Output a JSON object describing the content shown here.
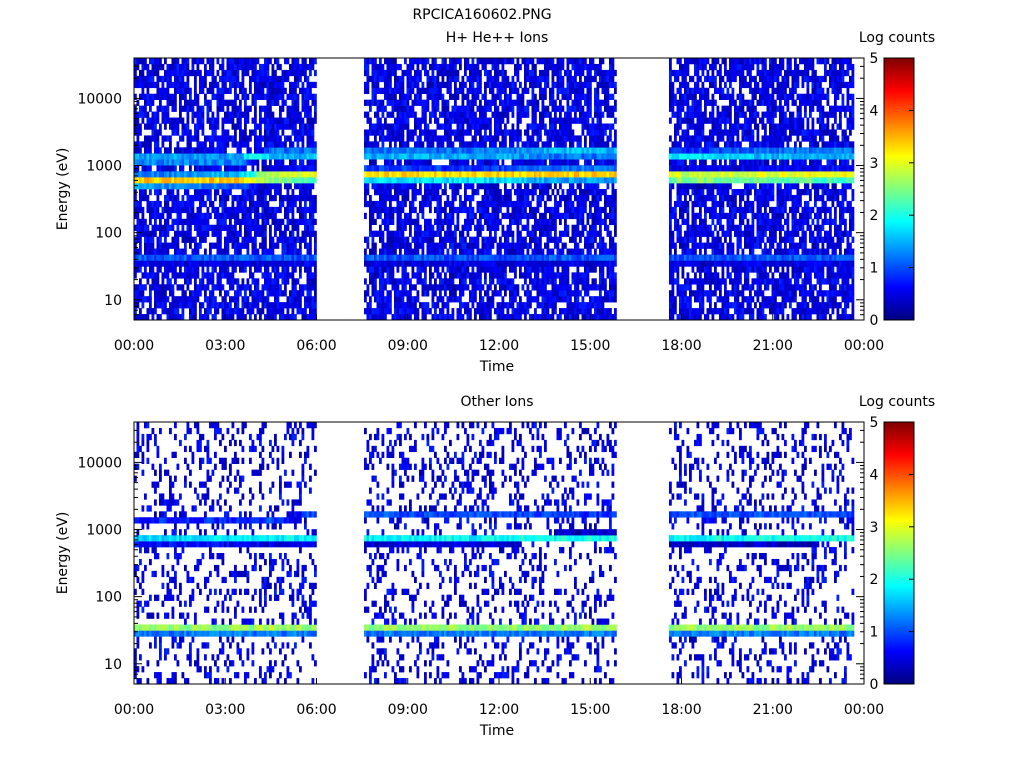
{
  "figure": {
    "title": "RPCICA160602.PNG",
    "palette": [
      "#00007f",
      "#0000ff",
      "#0080ff",
      "#00ffff",
      "#80ff80",
      "#ffff00",
      "#ff8000",
      "#ff0000",
      "#7f0000"
    ]
  },
  "chart_data": [
    {
      "type": "heatmap",
      "title": "H+ He++ Ions",
      "xlabel": "Time",
      "ylabel": "Energy (eV)",
      "x_units": "hours",
      "xlim": [
        0,
        24
      ],
      "xticks": [
        0,
        3,
        6,
        9,
        12,
        15,
        18,
        21,
        24
      ],
      "xtick_labels": [
        "00:00",
        "03:00",
        "06:00",
        "09:00",
        "12:00",
        "15:00",
        "18:00",
        "21:00",
        "00:00"
      ],
      "yscale": "log",
      "ylim": [
        5,
        40000
      ],
      "yticks": [
        10,
        100,
        1000,
        10000
      ],
      "ytick_labels": [
        "10",
        "100",
        "1000",
        "10000"
      ],
      "data_gaps": [
        [
          6.0,
          7.6
        ],
        [
          15.9,
          17.6
        ]
      ],
      "data_end": 23.7,
      "bands": [
        {
          "t": [
            0,
            3.5,
            4.5,
            6,
            8,
            12,
            14,
            16,
            18,
            21,
            24
          ],
          "energy": [
            600,
            620,
            680,
            700,
            720,
            720,
            740,
            740,
            680,
            690,
            700
          ],
          "peak": 3.4,
          "width": 0.09
        },
        {
          "t": [
            0,
            3.5,
            4.5,
            6,
            8,
            12,
            14,
            16,
            18,
            21,
            24
          ],
          "energy": [
            1250,
            1250,
            1500,
            1500,
            1500,
            1500,
            1550,
            1550,
            1450,
            1500,
            1500
          ],
          "peak": 2.0,
          "width": 0.07
        },
        {
          "t": [
            0,
            24
          ],
          "energy": [
            40,
            40
          ],
          "peak": 1.3,
          "width": 0.06
        }
      ],
      "colorbar": {
        "label": "Log counts",
        "range": [
          0,
          5
        ],
        "ticks": [
          0,
          1,
          2,
          3,
          4,
          5
        ]
      }
    },
    {
      "type": "heatmap",
      "title": "Other Ions",
      "xlabel": "Time",
      "ylabel": "Energy (eV)",
      "x_units": "hours",
      "xlim": [
        0,
        24
      ],
      "xticks": [
        0,
        3,
        6,
        9,
        12,
        15,
        18,
        21,
        24
      ],
      "xtick_labels": [
        "00:00",
        "03:00",
        "06:00",
        "09:00",
        "12:00",
        "15:00",
        "18:00",
        "21:00",
        "00:00"
      ],
      "yscale": "log",
      "ylim": [
        5,
        40000
      ],
      "yticks": [
        10,
        100,
        1000,
        10000
      ],
      "ytick_labels": [
        "10",
        "100",
        "1000",
        "10000"
      ],
      "data_gaps": [
        [
          6.0,
          7.6
        ],
        [
          15.9,
          17.6
        ]
      ],
      "data_end": 23.7,
      "bands": [
        {
          "t": [
            0,
            24
          ],
          "energy": [
            33,
            33
          ],
          "peak": 2.9,
          "width": 0.07
        },
        {
          "t": [
            0,
            6,
            8,
            12,
            14,
            16,
            18,
            21,
            24
          ],
          "energy": [
            700,
            720,
            720,
            720,
            760,
            760,
            720,
            730,
            740
          ],
          "peak": 2.0,
          "width": 0.06
        },
        {
          "t": [
            0,
            4,
            6,
            8,
            16,
            18,
            21,
            24
          ],
          "energy": [
            1300,
            1300,
            1700,
            1700,
            1600,
            1700,
            1700,
            1600
          ],
          "peak": 1.0,
          "width": 0.05
        }
      ],
      "colorbar": {
        "label": "Log counts",
        "range": [
          0,
          5
        ],
        "ticks": [
          0,
          1,
          2,
          3,
          4,
          5
        ]
      }
    }
  ]
}
